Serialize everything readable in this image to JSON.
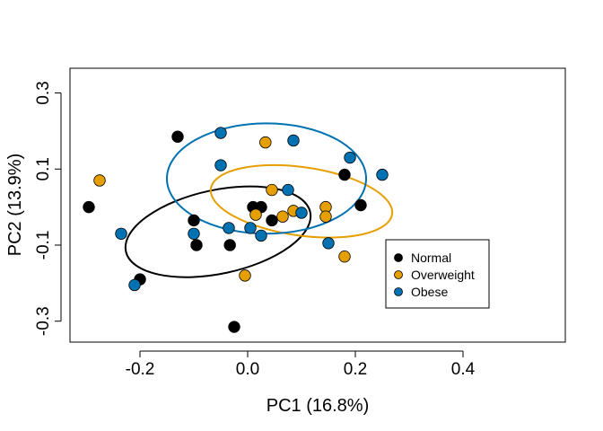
{
  "chart_data": {
    "type": "scatter",
    "title": "",
    "xlabel": "PC1 (16.8%)",
    "ylabel": "PC2 (13.9%)",
    "xlim": [
      -0.33,
      0.59
    ],
    "ylim": [
      -0.355,
      0.365
    ],
    "xticks": [
      -0.2,
      0.0,
      0.2,
      0.4
    ],
    "xtick_labels": [
      "-0.2",
      "0.0",
      "0.2",
      "0.4"
    ],
    "yticks": [
      -0.3,
      -0.1,
      0.1,
      0.3
    ],
    "ytick_labels": [
      "-0.3",
      "-0.1",
      "0.1",
      "0.3"
    ],
    "grid": false,
    "legend_position": "bottom-right",
    "series": [
      {
        "name": "Normal",
        "color": "#000000",
        "points": [
          {
            "x": -0.295,
            "y": 0.0
          },
          {
            "x": -0.13,
            "y": 0.185
          },
          {
            "x": -0.2,
            "y": -0.19
          },
          {
            "x": -0.095,
            "y": -0.1
          },
          {
            "x": -0.033,
            "y": -0.1
          },
          {
            "x": -0.025,
            "y": -0.315
          },
          {
            "x": 0.01,
            "y": 0.0
          },
          {
            "x": 0.025,
            "y": 0.0
          },
          {
            "x": 0.045,
            "y": -0.035
          },
          {
            "x": 0.18,
            "y": 0.085
          },
          {
            "x": 0.21,
            "y": 0.005
          },
          {
            "x": -0.1,
            "y": -0.035
          }
        ],
        "ellipse": {
          "cx": -0.055,
          "cy": -0.065,
          "rx": 0.175,
          "ry": 0.11,
          "angle_deg": 12
        }
      },
      {
        "name": "Overweight",
        "color": "#E69F00",
        "points": [
          {
            "x": -0.275,
            "y": 0.07
          },
          {
            "x": 0.033,
            "y": 0.17
          },
          {
            "x": 0.045,
            "y": 0.045
          },
          {
            "x": 0.015,
            "y": -0.02
          },
          {
            "x": 0.065,
            "y": -0.025
          },
          {
            "x": 0.085,
            "y": -0.01
          },
          {
            "x": 0.145,
            "y": 0.0
          },
          {
            "x": 0.145,
            "y": -0.025
          },
          {
            "x": -0.005,
            "y": -0.18
          },
          {
            "x": 0.18,
            "y": -0.13
          }
        ],
        "ellipse": {
          "cx": 0.1,
          "cy": 0.015,
          "rx": 0.17,
          "ry": 0.09,
          "angle_deg": -8
        }
      },
      {
        "name": "Obese",
        "color": "#0072B2",
        "points": [
          {
            "x": -0.05,
            "y": 0.195
          },
          {
            "x": -0.05,
            "y": 0.11
          },
          {
            "x": 0.085,
            "y": 0.175
          },
          {
            "x": 0.19,
            "y": 0.13
          },
          {
            "x": 0.25,
            "y": 0.085
          },
          {
            "x": 0.075,
            "y": 0.045
          },
          {
            "x": -0.235,
            "y": -0.07
          },
          {
            "x": -0.1,
            "y": -0.07
          },
          {
            "x": -0.035,
            "y": -0.055
          },
          {
            "x": 0.005,
            "y": -0.055
          },
          {
            "x": 0.025,
            "y": -0.075
          },
          {
            "x": 0.1,
            "y": -0.015
          },
          {
            "x": 0.15,
            "y": -0.095
          },
          {
            "x": -0.21,
            "y": -0.205
          }
        ],
        "ellipse": {
          "cx": 0.035,
          "cy": 0.075,
          "rx": 0.185,
          "ry": 0.145,
          "angle_deg": 0
        }
      }
    ]
  }
}
